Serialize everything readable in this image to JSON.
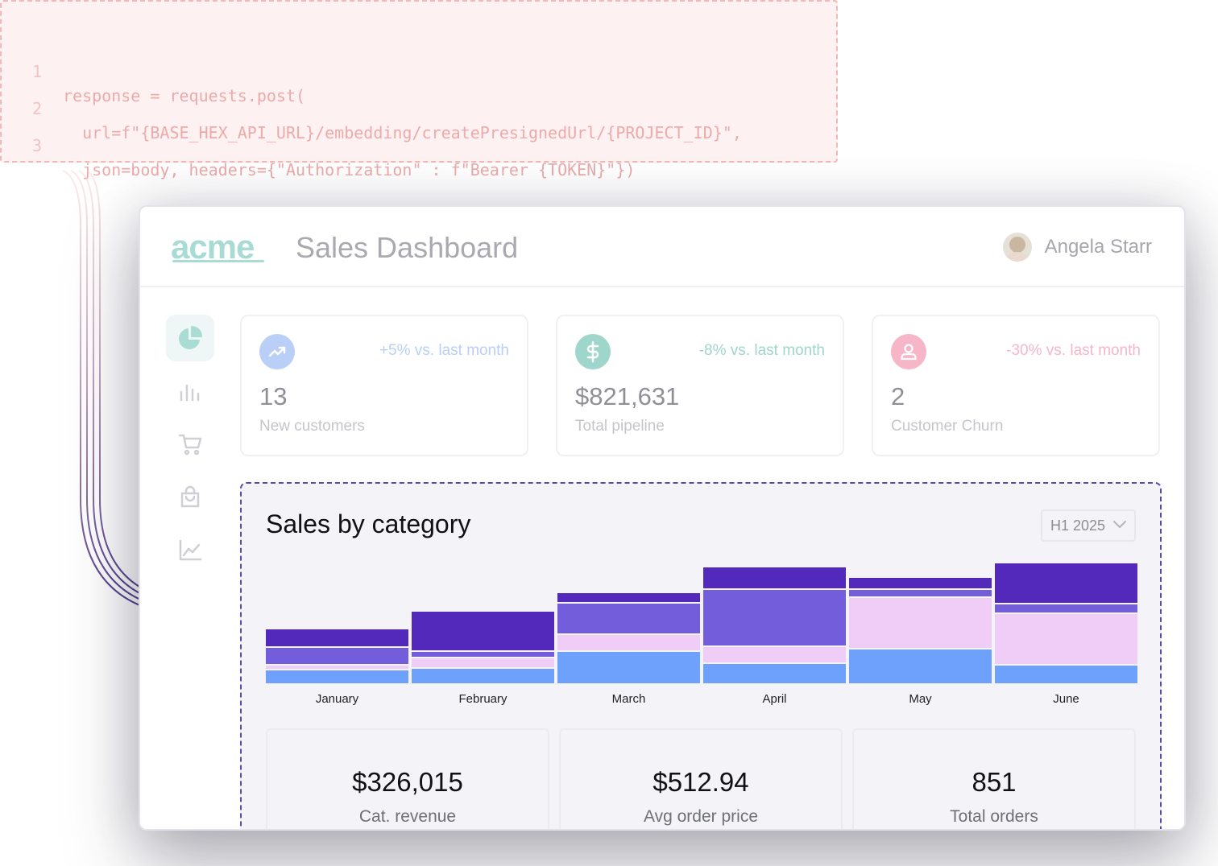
{
  "code": {
    "lines": [
      {
        "num": "1",
        "text": "response = requests.post("
      },
      {
        "num": "2",
        "text": "  url=f\"{BASE_HEX_API_URL}/embedding/createPresignedUrl/{PROJECT_ID}\","
      },
      {
        "num": "3",
        "text": "  json=body, headers={\"Authorization\" : f\"Bearer {TOKEN}\"})"
      }
    ]
  },
  "header": {
    "logo": "acme",
    "title": "Sales Dashboard",
    "user_name": "Angela Starr"
  },
  "sidebar": {
    "items": [
      {
        "icon": "pie-chart-icon",
        "active": true
      },
      {
        "icon": "bar-chart-icon",
        "active": false
      },
      {
        "icon": "cart-icon",
        "active": false
      },
      {
        "icon": "shopping-bag-icon",
        "active": false
      },
      {
        "icon": "line-chart-icon",
        "active": false
      }
    ]
  },
  "stats": [
    {
      "icon": "trending-up-icon",
      "change": "+5% vs. last month",
      "value": "13",
      "label": "New customers",
      "color": "#b9cff7"
    },
    {
      "icon": "dollar-icon",
      "change": "-8% vs. last month",
      "value": "$821,631",
      "label": "Total pipeline",
      "color": "#9fd6cc"
    },
    {
      "icon": "user-icon",
      "change": "-30% vs. last month",
      "value": "2",
      "label": "Customer Churn",
      "color": "#f6b6c8"
    }
  ],
  "panel": {
    "title": "Sales by category",
    "period": "H1 2025"
  },
  "chart_data": {
    "type": "bar",
    "stacked": true,
    "categories": [
      "January",
      "February",
      "March",
      "April",
      "May",
      "June"
    ],
    "series": [
      {
        "color": "#6ea1fb",
        "values": [
          18,
          20,
          41,
          26,
          44,
          24
        ]
      },
      {
        "color": "#efcdf6",
        "values": [
          6,
          13,
          21,
          21,
          64,
          64
        ]
      },
      {
        "color": "#735ddb",
        "values": [
          22,
          8,
          39,
          71,
          10,
          12
        ]
      },
      {
        "color": "#5229bb",
        "values": [
          23,
          50,
          13,
          28,
          15,
          51
        ]
      }
    ],
    "grid": false,
    "legend": "none"
  },
  "kpis": [
    {
      "value": "$326,015",
      "label": "Cat. revenue"
    },
    {
      "value": "$512.94",
      "label": "Avg order price"
    },
    {
      "value": "851",
      "label": "Total orders"
    }
  ]
}
